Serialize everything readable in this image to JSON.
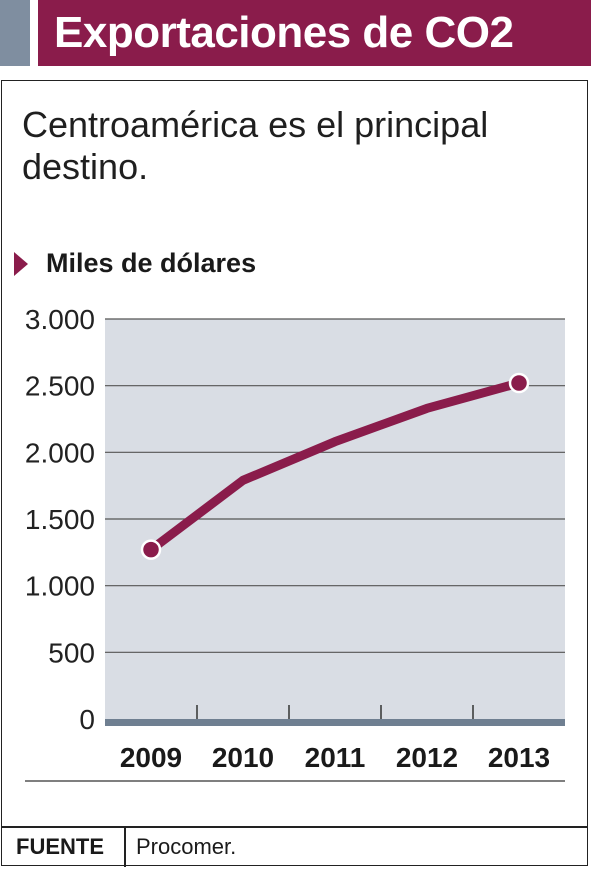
{
  "header": {
    "title": "Exportaciones de CO2",
    "accent_color": "#8a1c4b",
    "tab_color": "#7f8ea0"
  },
  "subtitle": "Centroamérica es el principal destino.",
  "unit_label": "Miles de dólares",
  "source": {
    "label": "FUENTE",
    "text": "Procomer."
  },
  "chart_data": {
    "type": "line",
    "title": "Exportaciones de CO2",
    "subtitle": "Centroamérica es el principal destino.",
    "ylabel": "Miles de dólares",
    "xlabel": "",
    "categories": [
      "2009",
      "2010",
      "2011",
      "2012",
      "2013"
    ],
    "series": [
      {
        "values": [
          1270,
          1790,
          2080,
          2330,
          2520
        ],
        "color": "#8a1c4b"
      }
    ],
    "ylim": [
      0,
      3000
    ],
    "yticks": [
      0,
      500,
      1000,
      1500,
      2000,
      2500,
      3000
    ],
    "ytick_labels": [
      "0",
      "500",
      "1.000",
      "1.500",
      "2.000",
      "2.500",
      "3.000"
    ],
    "grid": true,
    "plot_background": "#d9dde4",
    "axis_color": "#6f7f91",
    "highlighted_points": [
      "2009",
      "2013"
    ]
  }
}
